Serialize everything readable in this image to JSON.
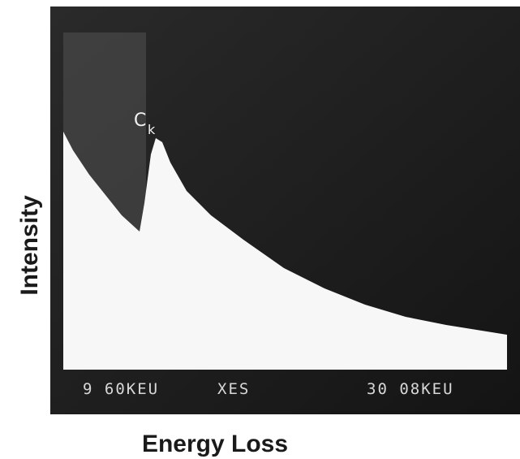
{
  "axis_labels": {
    "y": "Intensity",
    "x": "Energy Loss"
  },
  "screen": {
    "peak_label": {
      "base": "C",
      "sub": "k"
    },
    "readouts": [
      "9 60KEU",
      "XES",
      "30 08KEU"
    ]
  }
}
